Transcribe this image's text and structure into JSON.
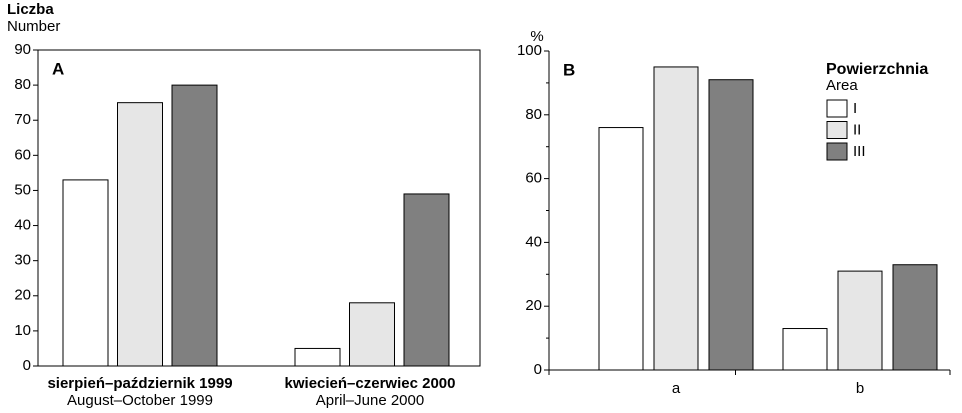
{
  "chart_data": [
    {
      "type": "bar",
      "panel": "A",
      "y_label": "Liczba",
      "y_label_en": "Number",
      "categories": [
        "sierpień–październik 1999",
        "kwiecień–czerwiec 2000"
      ],
      "categories_en": [
        "August–October 1999",
        "April–June 2000"
      ],
      "series": [
        {
          "name": "I",
          "color": "#ffffff",
          "values": [
            53,
            5
          ]
        },
        {
          "name": "II",
          "color": "#e6e6e6",
          "values": [
            75,
            18
          ]
        },
        {
          "name": "III",
          "color": "#808080",
          "values": [
            80,
            49
          ]
        }
      ],
      "ylim": [
        0,
        90
      ],
      "yticks": [
        0,
        10,
        20,
        30,
        40,
        50,
        60,
        70,
        80,
        90
      ]
    },
    {
      "type": "bar",
      "panel": "B",
      "y_label": "%",
      "categories": [
        "a",
        "b"
      ],
      "legend_title": "Powierzchnia",
      "legend_subtitle": "Area",
      "series": [
        {
          "name": "I",
          "color": "#ffffff",
          "values": [
            76,
            13
          ]
        },
        {
          "name": "II",
          "color": "#e6e6e6",
          "values": [
            95,
            31
          ]
        },
        {
          "name": "III",
          "color": "#808080",
          "values": [
            91,
            33
          ]
        }
      ],
      "ylim": [
        0,
        100
      ],
      "yticks": [
        0,
        20,
        40,
        60,
        80,
        100
      ]
    }
  ]
}
